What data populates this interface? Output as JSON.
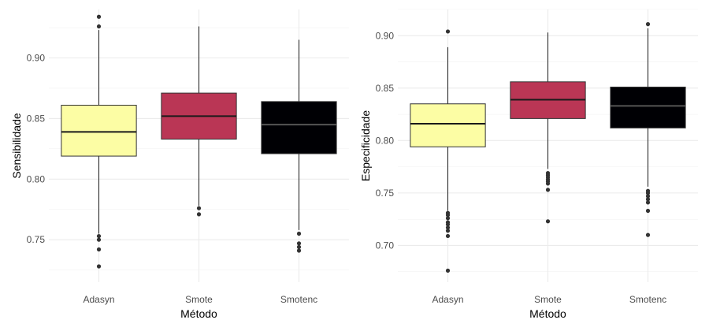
{
  "chart_data": [
    {
      "type": "box",
      "xlabel": "Método",
      "ylabel": "Sensibilidade",
      "categories": [
        "Adasyn",
        "Smote",
        "Smotenc"
      ],
      "ylim": [
        0.715,
        0.94
      ],
      "yticks": [
        "0.75",
        "0.80",
        "0.85",
        "0.90"
      ],
      "grid": true,
      "boxes": [
        {
          "category": "Adasyn",
          "fill": "#FCFDA4",
          "median_color": "#1a1a1a",
          "min": 0.755,
          "q1": 0.819,
          "median": 0.839,
          "q3": 0.861,
          "max": 0.923,
          "outliers": [
            0.934,
            0.926,
            0.753,
            0.75,
            0.742,
            0.728
          ]
        },
        {
          "category": "Smote",
          "fill": "#BA3655",
          "median_color": "#1a1a1a",
          "min": 0.778,
          "q1": 0.833,
          "median": 0.852,
          "q3": 0.871,
          "max": 0.926,
          "outliers": [
            0.776,
            0.771
          ]
        },
        {
          "category": "Smotenc",
          "fill": "#000004",
          "median_color": "#555555",
          "min": 0.758,
          "q1": 0.821,
          "median": 0.845,
          "q3": 0.864,
          "max": 0.915,
          "outliers": [
            0.755,
            0.747,
            0.744,
            0.741
          ]
        }
      ]
    },
    {
      "type": "box",
      "xlabel": "Método",
      "ylabel": "Especificidade",
      "categories": [
        "Adasyn",
        "Smote",
        "Smotenc"
      ],
      "ylim": [
        0.665,
        0.925
      ],
      "yticks": [
        "0.70",
        "0.75",
        "0.80",
        "0.85",
        "0.90"
      ],
      "grid": true,
      "boxes": [
        {
          "category": "Adasyn",
          "fill": "#FCFDA4",
          "median_color": "#1a1a1a",
          "min": 0.733,
          "q1": 0.794,
          "median": 0.816,
          "q3": 0.835,
          "max": 0.889,
          "outliers": [
            0.904,
            0.731,
            0.729,
            0.726,
            0.722,
            0.72,
            0.717,
            0.714,
            0.709,
            0.676
          ]
        },
        {
          "category": "Smote",
          "fill": "#BA3655",
          "median_color": "#1a1a1a",
          "min": 0.773,
          "q1": 0.821,
          "median": 0.839,
          "q3": 0.856,
          "max": 0.903,
          "outliers": [
            0.769,
            0.767,
            0.765,
            0.763,
            0.761,
            0.759,
            0.753,
            0.723
          ]
        },
        {
          "category": "Smotenc",
          "fill": "#000004",
          "median_color": "#555555",
          "min": 0.756,
          "q1": 0.812,
          "median": 0.833,
          "q3": 0.851,
          "max": 0.907,
          "outliers": [
            0.911,
            0.752,
            0.75,
            0.747,
            0.744,
            0.741,
            0.733,
            0.71
          ]
        }
      ]
    }
  ]
}
